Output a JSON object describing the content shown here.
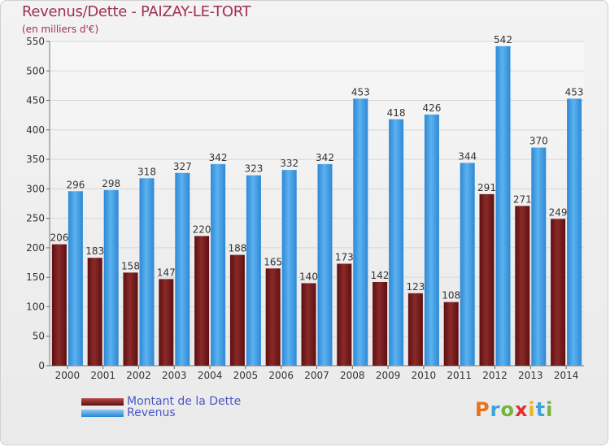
{
  "header": {
    "title": "Revenus/Dette - PAIZAY-LE-TORT",
    "unit": "(en milliers d'€)"
  },
  "legend": {
    "debt_label": "Montant de la Dette",
    "revenue_label": "Revenus"
  },
  "logo": {
    "text": "Proxiti"
  },
  "colors": {
    "debt": "#7a1e1e",
    "revenue": "#4aa3e8",
    "title": "#a0304f",
    "legend_text": "#4a57c9"
  },
  "chart_data": {
    "type": "bar",
    "title": "Revenus/Dette - PAIZAY-LE-TORT",
    "ylabel": "(en milliers d'€)",
    "categories": [
      "2000",
      "2001",
      "2002",
      "2003",
      "2004",
      "2005",
      "2006",
      "2007",
      "2008",
      "2009",
      "2010",
      "2011",
      "2012",
      "2013",
      "2014"
    ],
    "series": [
      {
        "name": "Montant de la Dette",
        "values": [
          206,
          183,
          158,
          147,
          220,
          188,
          165,
          140,
          173,
          142,
          123,
          108,
          291,
          271,
          249
        ]
      },
      {
        "name": "Revenus",
        "values": [
          296,
          298,
          318,
          327,
          342,
          323,
          332,
          342,
          453,
          418,
          426,
          344,
          542,
          370,
          453
        ]
      }
    ],
    "ylim": [
      0,
      550
    ],
    "yticks": [
      0,
      50,
      100,
      150,
      200,
      250,
      300,
      350,
      400,
      450,
      500,
      550
    ],
    "grid": true,
    "legend": "bottom-left"
  }
}
